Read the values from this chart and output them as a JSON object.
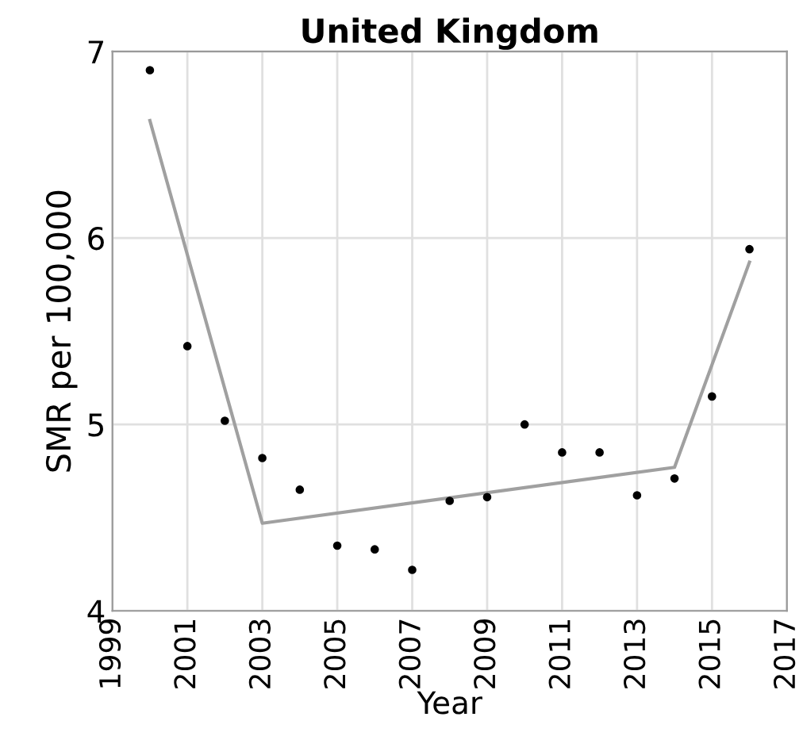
{
  "chart_data": {
    "type": "scatter",
    "title": "United Kingdom",
    "xlabel": "Year",
    "ylabel": "SMR per 100,000",
    "xlim": [
      1999,
      2017
    ],
    "xticks": [
      1999,
      2001,
      2003,
      2005,
      2007,
      2009,
      2011,
      2013,
      2015,
      2017
    ],
    "ylim": [
      4,
      7
    ],
    "yticks": [
      4,
      5,
      6,
      7
    ],
    "grid": true,
    "series": [
      {
        "color": "#000000",
        "marker": "circle",
        "x": [
          2000,
          2001,
          2002,
          2003,
          2004,
          2005,
          2006,
          2007,
          2008,
          2009,
          2010,
          2011,
          2012,
          2013,
          2014,
          2015,
          2016
        ],
        "values": [
          6.9,
          5.42,
          5.02,
          4.82,
          4.65,
          4.35,
          4.33,
          4.22,
          4.59,
          4.61,
          5.0,
          4.85,
          4.85,
          4.62,
          4.71,
          5.15,
          5.94
        ]
      },
      {
        "type": "line",
        "color": "#a0a0a0",
        "x": [
          2000,
          2003,
          2014,
          2016
        ],
        "values": [
          6.63,
          4.47,
          4.77,
          5.87
        ]
      }
    ]
  }
}
